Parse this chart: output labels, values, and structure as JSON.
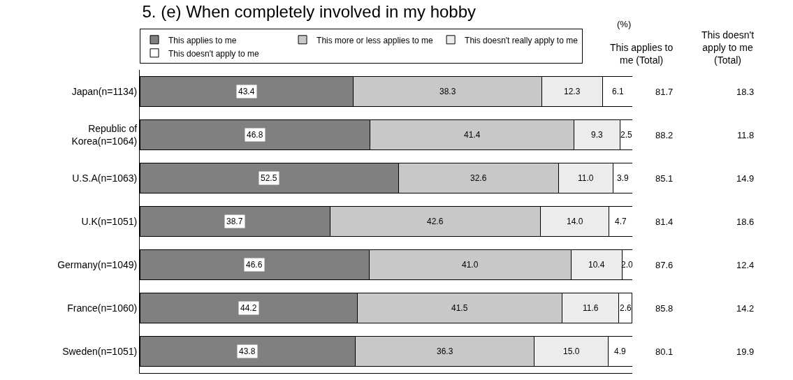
{
  "chart_data": {
    "type": "bar",
    "orientation": "horizontal",
    "stacked": true,
    "title": "5. (e) When completely involved in my hobby",
    "categories": [
      "Japan(n=1134)",
      "Republic of Korea(n=1064)",
      "U.S.A(n=1063)",
      "U.K(n=1051)",
      "Germany(n=1049)",
      "France(n=1060)",
      "Sweden(n=1051)"
    ],
    "series": [
      {
        "name": "This applies to me",
        "color": "#808080",
        "values": [
          43.4,
          46.8,
          52.5,
          38.7,
          46.6,
          44.2,
          43.8
        ],
        "value_labels": [
          "43.4",
          "46.8",
          "52.5",
          "38.7",
          "46.6",
          "44.2",
          "43.8"
        ]
      },
      {
        "name": "This more or less applies to me",
        "color": "#c8c8c8",
        "values": [
          38.3,
          41.4,
          32.6,
          42.6,
          41.0,
          41.5,
          36.3
        ],
        "value_labels": [
          "38.3",
          "41.4",
          "32.6",
          "42.6",
          "41.0",
          "41.5",
          "36.3"
        ]
      },
      {
        "name": "This doesn't really apply to me",
        "color": "#ececec",
        "values": [
          12.3,
          9.3,
          11.0,
          14.0,
          10.4,
          11.6,
          15.0
        ],
        "value_labels": [
          "12.3",
          "9.3",
          "11.0",
          "14.0",
          "10.4",
          "11.6",
          "15.0"
        ]
      },
      {
        "name": "This doesn't apply to me",
        "color": "#ffffff",
        "values": [
          6.1,
          2.5,
          3.9,
          4.7,
          2.0,
          2.6,
          4.9
        ],
        "value_labels": [
          "6.1",
          "2.5",
          "3.9",
          "4.7",
          "2.0",
          "2.6",
          "4.9"
        ]
      }
    ],
    "xlim": [
      0,
      100
    ],
    "tick_labels": "y",
    "legend": "top",
    "annotations": [
      "(%)",
      "This applies to me (Total)",
      "This doesn't apply to me (Total)",
      "81.7",
      "18.3",
      "88.2",
      "11.8",
      "85.1",
      "14.9",
      "81.4",
      "18.6",
      "87.6",
      "12.4",
      "85.8",
      "14.2",
      "80.1",
      "19.9"
    ]
  }
}
